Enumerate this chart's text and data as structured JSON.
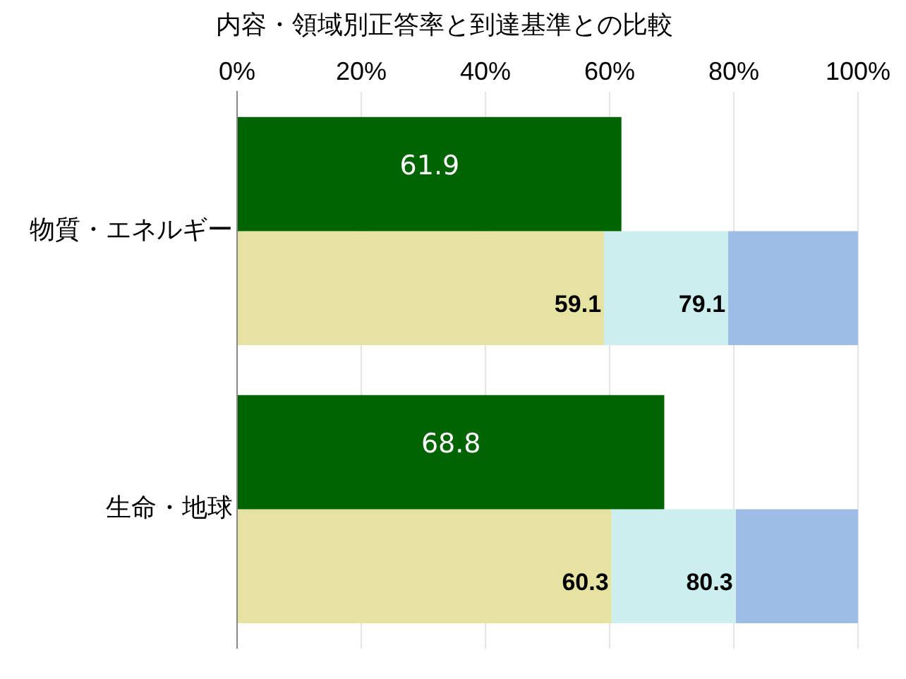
{
  "chart_data": {
    "type": "bar",
    "orientation": "horizontal",
    "title": "内容・領域別正答率と到達基準との比較",
    "categories": [
      "物質・エネルギー",
      "生命・地球"
    ],
    "xlim": [
      0,
      100
    ],
    "xticks": [
      {
        "value": 0,
        "label": "0%"
      },
      {
        "value": 20,
        "label": "20%"
      },
      {
        "value": 40,
        "label": "40%"
      },
      {
        "value": 60,
        "label": "60%"
      },
      {
        "value": 80,
        "label": "80%"
      },
      {
        "value": 100,
        "label": "100%"
      }
    ],
    "grid": "x",
    "legend": false,
    "series": [
      {
        "color": "#006400",
        "values": [
          61.9,
          68.8
        ],
        "value_labels": [
          "61.9",
          "68.8"
        ]
      },
      {
        "color": "#e6e3a2",
        "base": [
          0,
          0
        ],
        "values": [
          59.1,
          60.3
        ],
        "value_labels": [
          "59.1",
          "60.3"
        ]
      },
      {
        "color": "#cdeeee",
        "base": [
          59.1,
          60.3
        ],
        "values": [
          20,
          20
        ],
        "value_labels": [
          "79.1",
          "80.3"
        ]
      },
      {
        "color": "#9dbde6",
        "base": [
          79.1,
          80.3
        ],
        "values": [
          20.9,
          19.7
        ]
      }
    ]
  }
}
